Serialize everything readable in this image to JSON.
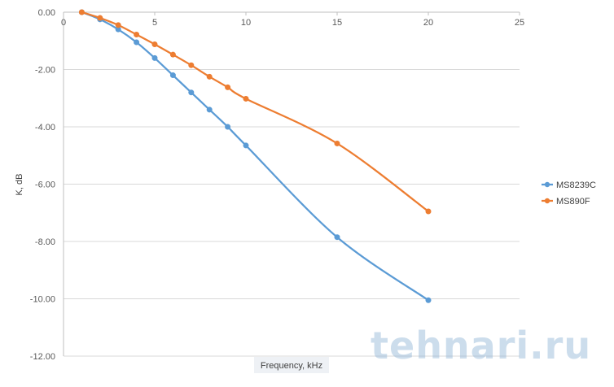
{
  "chart_data": {
    "type": "line",
    "title": "",
    "xlabel": "Frequency, kHz",
    "ylabel": "K, dB",
    "xlim": [
      0,
      25
    ],
    "ylim": [
      -12,
      0
    ],
    "x_ticks": [
      0,
      5,
      10,
      15,
      20,
      25
    ],
    "y_ticks": [
      0,
      -2,
      -4,
      -6,
      -8,
      -10,
      -12
    ],
    "x_tick_labels": [
      "0",
      "5",
      "10",
      "15",
      "20",
      "25"
    ],
    "y_tick_labels": [
      "0.00",
      "-2.00",
      "-4.00",
      "-6.00",
      "-8.00",
      "-10.00",
      "-12.00"
    ],
    "grid": "horizontal",
    "legend_position": "right",
    "series": [
      {
        "name": "MS8239C",
        "color": "#5b9bd5",
        "x": [
          1,
          2,
          3,
          4,
          5,
          6,
          7,
          8,
          9,
          10,
          15,
          20
        ],
        "y": [
          0,
          -0.25,
          -0.6,
          -1.05,
          -1.6,
          -2.2,
          -2.8,
          -3.4,
          -4.0,
          -4.65,
          -7.85,
          -10.05
        ]
      },
      {
        "name": "MS890F",
        "color": "#ed7d31",
        "x": [
          1,
          2,
          3,
          4,
          5,
          6,
          7,
          8,
          9,
          10,
          15,
          20
        ],
        "y": [
          0,
          -0.2,
          -0.45,
          -0.78,
          -1.12,
          -1.48,
          -1.85,
          -2.25,
          -2.62,
          -3.02,
          -4.58,
          -6.95
        ]
      }
    ]
  },
  "watermark": "tehnari.ru"
}
